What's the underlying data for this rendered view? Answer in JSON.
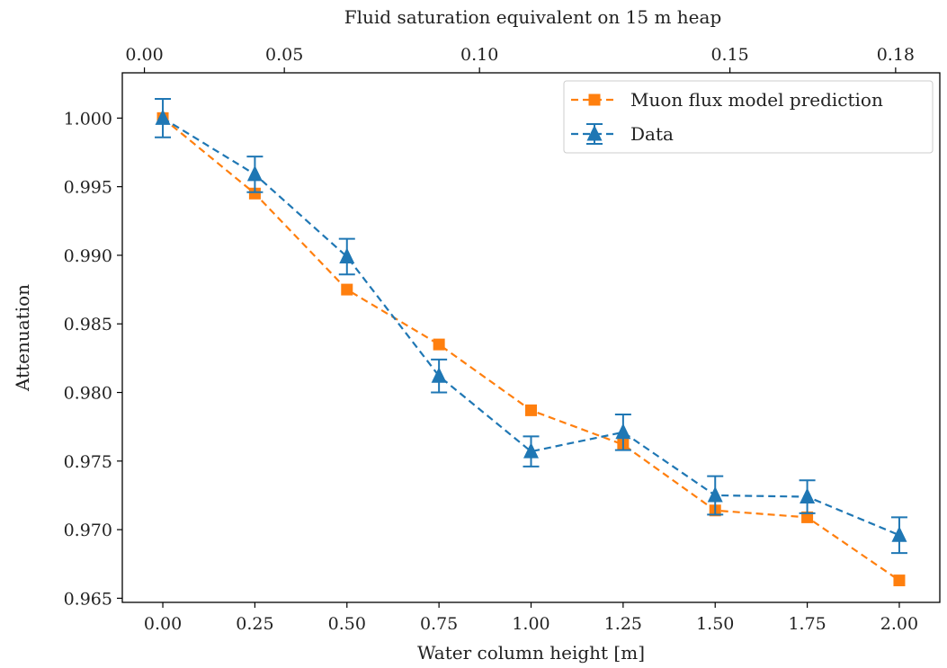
{
  "chart_data": {
    "type": "line",
    "xlabel": "Water column height [m]",
    "ylabel": "Attenuation",
    "top_xlabel": "Fluid saturation equivalent on 15 m heap",
    "xlim": [
      -0.11,
      2.11
    ],
    "ylim": [
      0.9647,
      1.0033
    ],
    "x": [
      0.0,
      0.25,
      0.5,
      0.75,
      1.0,
      1.25,
      1.5,
      1.75,
      2.0
    ],
    "x_ticks": [
      "0.00",
      "0.25",
      "0.50",
      "0.75",
      "1.00",
      "1.25",
      "1.50",
      "1.75",
      "2.00"
    ],
    "y_ticks": [
      {
        "value": 0.965,
        "label": "0.965"
      },
      {
        "value": 0.97,
        "label": "0.970"
      },
      {
        "value": 0.975,
        "label": "0.975"
      },
      {
        "value": 0.98,
        "label": "0.980"
      },
      {
        "value": 0.985,
        "label": "0.985"
      },
      {
        "value": 0.99,
        "label": "0.990"
      },
      {
        "value": 0.995,
        "label": "0.995"
      },
      {
        "value": 1.0,
        "label": "1.000"
      }
    ],
    "top_x_ticks": [
      {
        "at_x": -0.05,
        "label": "0.00"
      },
      {
        "at_x": 0.33,
        "label": "0.05"
      },
      {
        "at_x": 0.86,
        "label": "0.10"
      },
      {
        "at_x": 1.54,
        "label": "0.15"
      },
      {
        "at_x": 1.99,
        "label": "0.18"
      }
    ],
    "series": [
      {
        "name": "Muon flux model prediction",
        "color": "#ff7f0e",
        "marker": "square",
        "style": "dashed",
        "values": [
          1.0,
          0.9945,
          0.9875,
          0.9835,
          0.9787,
          0.9762,
          0.9714,
          0.9709,
          0.9663
        ]
      },
      {
        "name": "Data",
        "color": "#1f77b4",
        "marker": "triangle",
        "style": "dashed",
        "values": [
          1.0,
          0.9959,
          0.9899,
          0.9812,
          0.9757,
          0.9771,
          0.9725,
          0.9724,
          0.9696
        ],
        "errors": [
          0.0014,
          0.0013,
          0.0013,
          0.0012,
          0.0011,
          0.0013,
          0.0014,
          0.0012,
          0.0013
        ]
      }
    ],
    "legend_position": "top-right",
    "grid": false
  }
}
